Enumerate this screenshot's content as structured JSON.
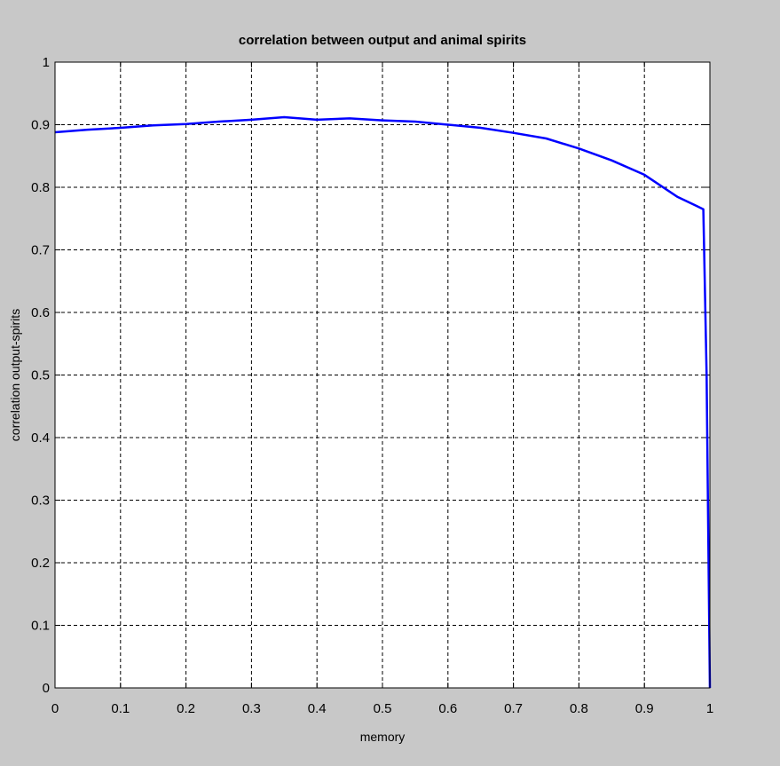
{
  "chart_data": {
    "type": "line",
    "title": "correlation between output and animal spirits",
    "xlabel": "memory",
    "ylabel": "correlation output-spirits",
    "xlim": [
      0,
      1
    ],
    "ylim": [
      0,
      1
    ],
    "xticks": [
      "0",
      "0.1",
      "0.2",
      "0.3",
      "0.4",
      "0.5",
      "0.6",
      "0.7",
      "0.8",
      "0.9",
      "1"
    ],
    "yticks": [
      "0",
      "0.1",
      "0.2",
      "0.3",
      "0.4",
      "0.5",
      "0.6",
      "0.7",
      "0.8",
      "0.9",
      "1"
    ],
    "grid": true,
    "series": [
      {
        "color": "#0000ff",
        "x": [
          0,
          0.05,
          0.1,
          0.15,
          0.2,
          0.25,
          0.3,
          0.35,
          0.4,
          0.45,
          0.5,
          0.55,
          0.6,
          0.65,
          0.7,
          0.75,
          0.8,
          0.85,
          0.9,
          0.95,
          0.98,
          0.99,
          0.995,
          0.998,
          1
        ],
        "y": [
          0.888,
          0.892,
          0.895,
          0.899,
          0.901,
          0.905,
          0.908,
          0.912,
          0.908,
          0.91,
          0.907,
          0.905,
          0.9,
          0.895,
          0.887,
          0.878,
          0.862,
          0.843,
          0.82,
          0.785,
          0.77,
          0.765,
          0.5,
          0.2,
          0
        ]
      }
    ]
  },
  "colors": {
    "background": "#c8c8c8",
    "plot_area": "#ffffff",
    "line": "#0000ff",
    "grid": "#000000"
  }
}
